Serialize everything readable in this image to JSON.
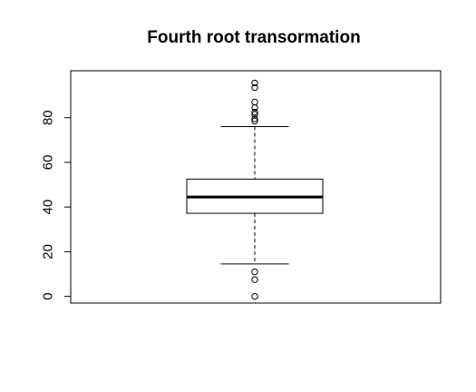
{
  "chart_data": {
    "type": "boxplot",
    "title": "Fourth root transormation",
    "xlabel": "",
    "ylabel": "",
    "ylim": [
      -3,
      101
    ],
    "yticks": [
      0,
      20,
      40,
      60,
      80
    ],
    "box": {
      "lower_whisker": 14.5,
      "q1": 37.2,
      "median": 44.5,
      "q3": 52.5,
      "upper_whisker": 76
    },
    "outliers": [
      0,
      7.5,
      11,
      78.5,
      79.5,
      81.5,
      82.5,
      84.5,
      87,
      93.5,
      95.5
    ],
    "colors": {
      "stroke": "#000000",
      "background": "#ffffff"
    }
  }
}
